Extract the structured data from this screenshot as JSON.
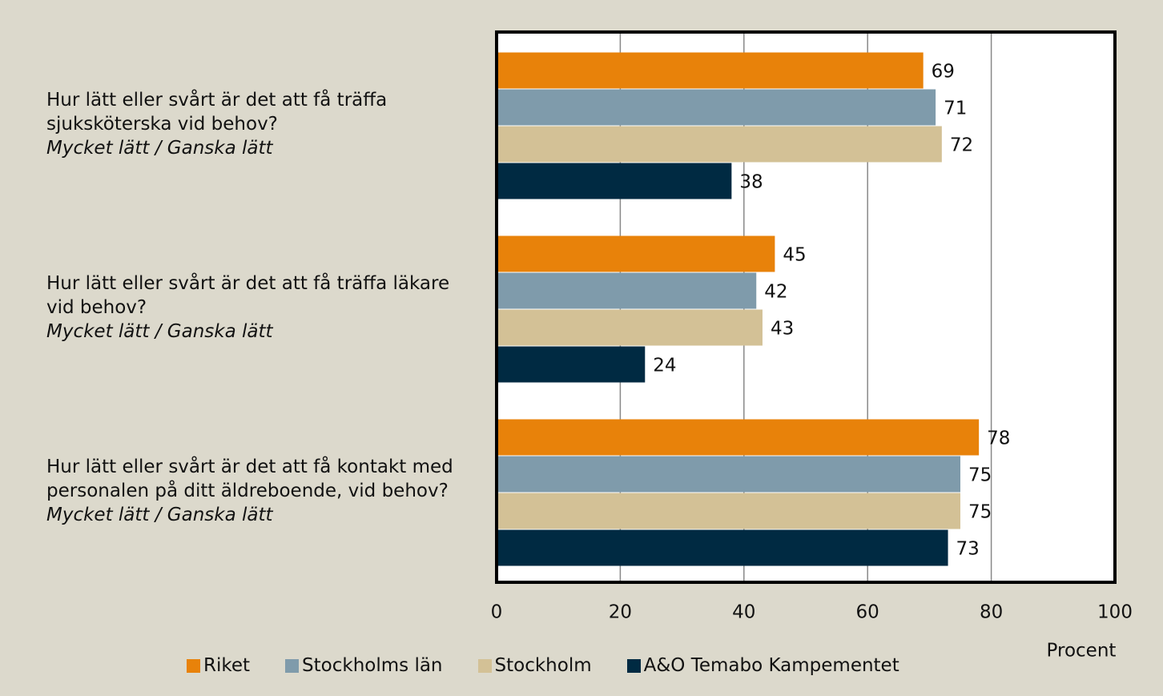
{
  "chart_data": {
    "type": "hbar",
    "categories": [
      "Hur lätt eller svårt är det att få träffa sjuksköterska vid behov?",
      "Hur lätt eller svårt är det att få träffa läkare vid behov?",
      "Hur lätt eller svårt är det att få kontakt med personalen på ditt äldreboende, vid behov?"
    ],
    "category_subtitles": [
      "Mycket lätt / Ganska lätt",
      "Mycket lätt / Ganska lätt",
      "Mycket lätt / Ganska lätt"
    ],
    "series": [
      {
        "name": "Riket",
        "color": "#e8820a",
        "values": [
          69,
          45,
          78
        ]
      },
      {
        "name": "Stockholms län",
        "color": "#7f9bab",
        "values": [
          71,
          42,
          75
        ]
      },
      {
        "name": "Stockholm",
        "color": "#d3c196",
        "values": [
          72,
          43,
          75
        ]
      },
      {
        "name": "A&O Temabo Kampementet",
        "color": "#002a42",
        "values": [
          38,
          24,
          73
        ]
      }
    ],
    "xlabel": "Procent",
    "xlim": [
      0,
      100
    ],
    "xticks": [
      0,
      20,
      40,
      60,
      80,
      100
    ],
    "grid": true,
    "legend": "bottom"
  }
}
